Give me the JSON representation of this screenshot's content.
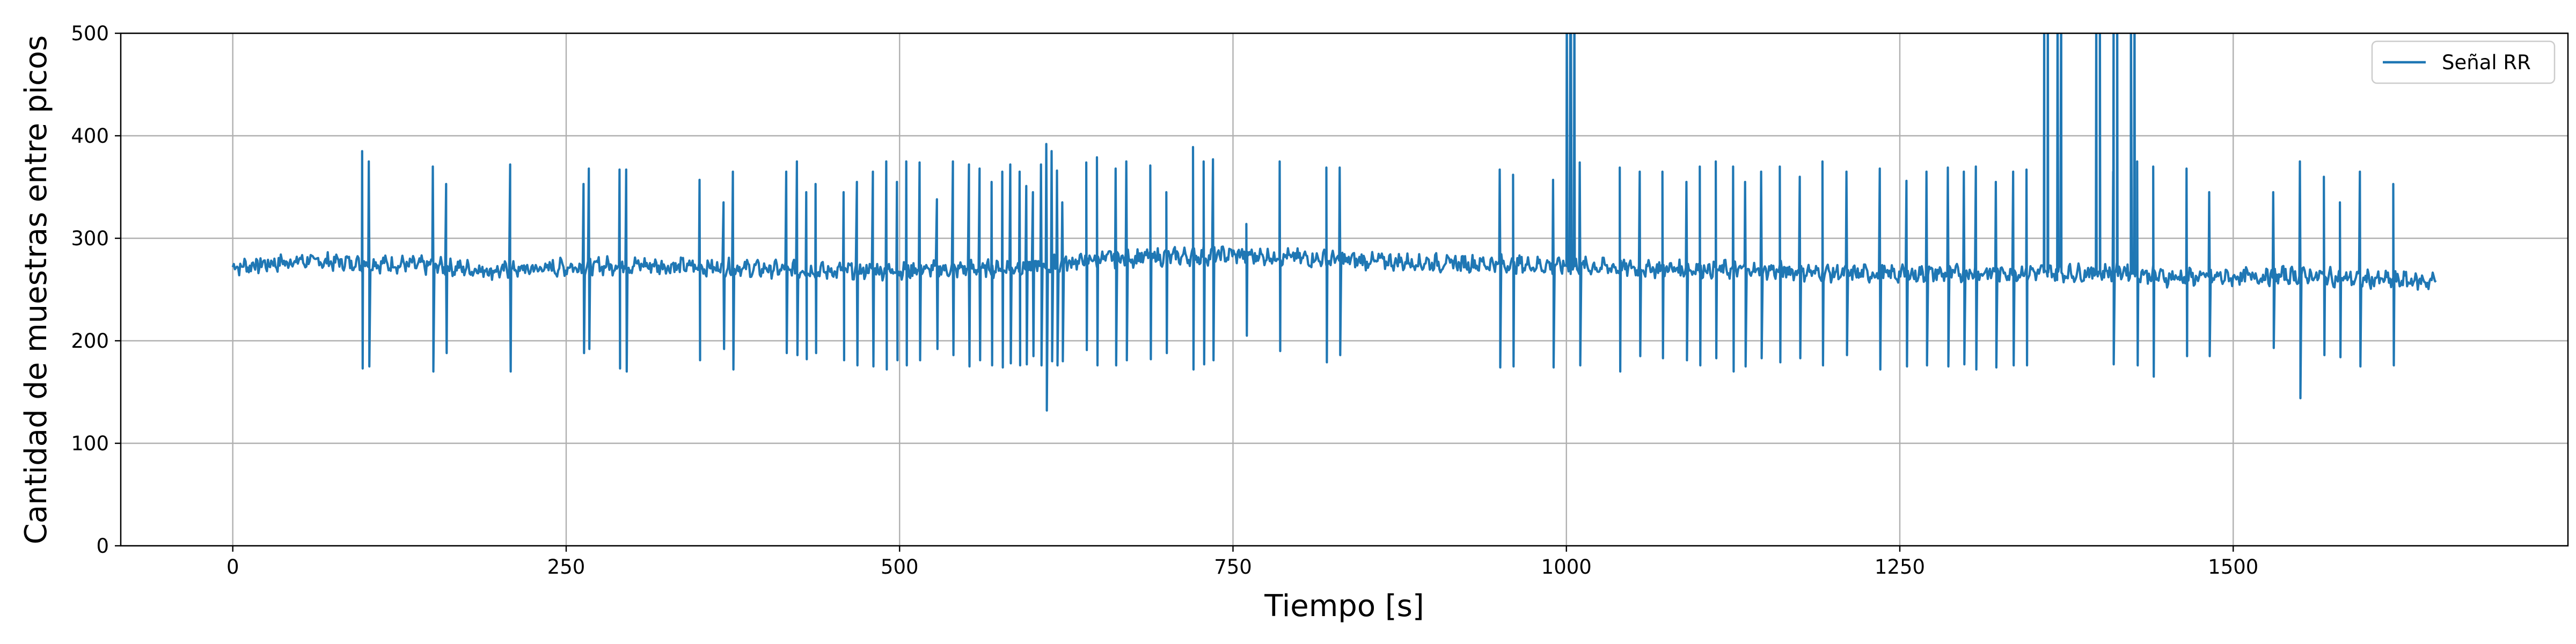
{
  "chart_data": {
    "type": "line",
    "title": "",
    "xlabel": "Tiempo [s]",
    "ylabel": "Cantidad de muestras entre picos",
    "xlim": [
      -84,
      1751
    ],
    "ylim": [
      0,
      500
    ],
    "xticks": [
      0,
      250,
      500,
      750,
      1000,
      1250,
      1500
    ],
    "yticks": [
      0,
      100,
      200,
      300,
      400,
      500
    ],
    "grid": true,
    "legend_position": "top-right",
    "series": [
      {
        "name": "Señal RR",
        "color": "#1f77b4",
        "baseline": [
          [
            0,
            272
          ],
          [
            50,
            278
          ],
          [
            100,
            276
          ],
          [
            150,
            273
          ],
          [
            200,
            268
          ],
          [
            250,
            272
          ],
          [
            300,
            274
          ],
          [
            350,
            272
          ],
          [
            400,
            270
          ],
          [
            450,
            268
          ],
          [
            500,
            269
          ],
          [
            550,
            270
          ],
          [
            600,
            272
          ],
          [
            650,
            280
          ],
          [
            700,
            282
          ],
          [
            750,
            284
          ],
          [
            800,
            281
          ],
          [
            850,
            278
          ],
          [
            900,
            276
          ],
          [
            950,
            275
          ],
          [
            1000,
            273
          ],
          [
            1050,
            271
          ],
          [
            1100,
            270
          ],
          [
            1150,
            269
          ],
          [
            1200,
            266
          ],
          [
            1250,
            265
          ],
          [
            1300,
            266
          ],
          [
            1350,
            267
          ],
          [
            1380,
            266
          ],
          [
            1420,
            268
          ],
          [
            1450,
            262
          ],
          [
            1500,
            262
          ],
          [
            1550,
            264
          ],
          [
            1600,
            260
          ],
          [
            1650,
            258
          ]
        ],
        "spikes": [
          [
            97,
            385,
            173
          ],
          [
            102,
            375,
            175
          ],
          [
            150,
            370,
            170
          ],
          [
            160,
            353,
            188
          ],
          [
            208,
            372,
            170
          ],
          [
            263,
            353,
            188
          ],
          [
            267,
            368,
            192
          ],
          [
            290,
            367,
            173
          ],
          [
            295,
            367,
            170
          ],
          [
            350,
            357,
            181
          ],
          [
            368,
            335,
            192
          ],
          [
            375,
            365,
            172
          ],
          [
            415,
            365,
            188
          ],
          [
            423,
            375,
            186
          ],
          [
            430,
            345,
            182
          ],
          [
            437,
            353,
            188
          ],
          [
            458,
            345,
            181
          ],
          [
            468,
            355,
            176
          ],
          [
            480,
            365,
            175
          ],
          [
            490,
            375,
            172
          ],
          [
            498,
            355,
            181
          ],
          [
            505,
            375,
            176
          ],
          [
            515,
            374,
            181
          ],
          [
            528,
            338,
            192
          ],
          [
            540,
            375,
            186
          ],
          [
            552,
            372,
            175
          ],
          [
            560,
            368,
            181
          ],
          [
            569,
            355,
            176
          ],
          [
            577,
            365,
            174
          ],
          [
            583,
            372,
            178
          ],
          [
            590,
            365,
            176
          ],
          [
            595,
            351,
            177
          ],
          [
            600,
            345,
            185
          ],
          [
            606,
            372,
            176
          ],
          [
            610,
            392,
            132
          ],
          [
            614,
            385,
            180
          ],
          [
            618,
            366,
            176
          ],
          [
            622,
            335,
            180
          ],
          [
            640,
            374,
            191
          ],
          [
            648,
            379,
            176
          ],
          [
            662,
            368,
            176
          ],
          [
            670,
            375,
            181
          ],
          [
            688,
            371,
            182
          ],
          [
            700,
            345,
            188
          ],
          [
            720,
            389,
            172
          ],
          [
            728,
            375,
            177
          ],
          [
            735,
            377,
            181
          ],
          [
            760,
            314,
            205
          ],
          [
            785,
            375,
            190
          ],
          [
            820,
            369,
            179
          ],
          [
            830,
            369,
            186
          ],
          [
            950,
            367,
            174
          ],
          [
            960,
            362,
            175
          ],
          [
            990,
            357,
            174
          ],
          [
            1010,
            374,
            176
          ],
          [
            1040,
            369,
            170
          ],
          [
            1055,
            365,
            185
          ],
          [
            1072,
            365,
            183
          ],
          [
            1090,
            355,
            181
          ],
          [
            1100,
            370,
            176
          ],
          [
            1112,
            375,
            183
          ],
          [
            1125,
            370,
            170
          ],
          [
            1134,
            355,
            175
          ],
          [
            1146,
            365,
            183
          ],
          [
            1160,
            370,
            179
          ],
          [
            1175,
            360,
            183
          ],
          [
            1192,
            375,
            176
          ],
          [
            1210,
            365,
            186
          ],
          [
            1235,
            368,
            172
          ],
          [
            1255,
            356,
            175
          ],
          [
            1270,
            365,
            176
          ],
          [
            1286,
            369,
            175
          ],
          [
            1298,
            365,
            177
          ],
          [
            1307,
            370,
            172
          ],
          [
            1322,
            355,
            174
          ],
          [
            1335,
            365,
            176
          ],
          [
            1345,
            367,
            176
          ],
          [
            1410,
            365,
            177
          ],
          [
            1428,
            375,
            176
          ],
          [
            1440,
            370,
            165
          ],
          [
            1465,
            368,
            185
          ],
          [
            1482,
            345,
            185
          ],
          [
            1530,
            345,
            193
          ],
          [
            1550,
            375,
            144
          ],
          [
            1568,
            360,
            186
          ],
          [
            1580,
            335,
            184
          ],
          [
            1595,
            365,
            175
          ],
          [
            1620,
            353,
            176
          ]
        ],
        "clipped_spikes": [
          [
            1000,
            1003
          ],
          [
            1003,
            1006
          ],
          [
            1358,
            1361
          ],
          [
            1368,
            1371
          ],
          [
            1397,
            1400
          ],
          [
            1410,
            1413
          ],
          [
            1423,
            1426
          ]
        ]
      }
    ]
  }
}
